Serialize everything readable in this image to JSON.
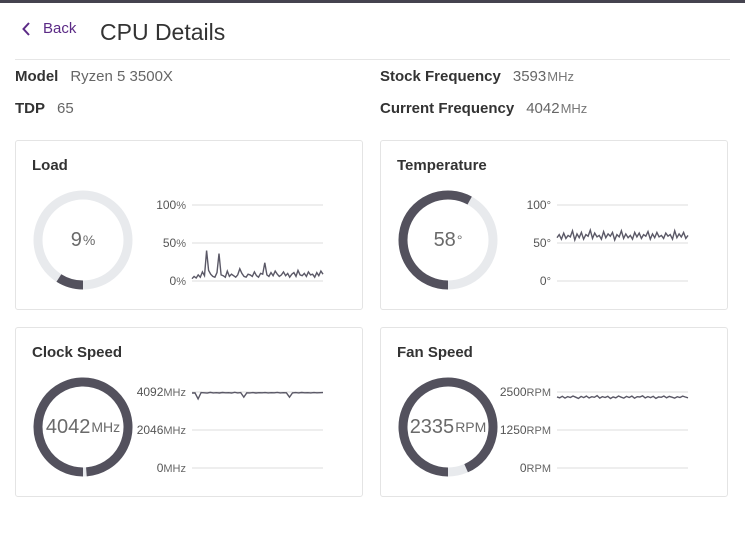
{
  "header": {
    "back_label": "Back",
    "title": "CPU Details"
  },
  "info": {
    "model_label": "Model",
    "model_value": "Ryzen 5 3500X",
    "tdp_label": "TDP",
    "tdp_value": "65",
    "stock_label": "Stock Frequency",
    "stock_value": "3593",
    "stock_unit": "MHz",
    "current_label": "Current Frequency",
    "current_value": "4042",
    "current_unit": "MHz"
  },
  "cards": {
    "load": {
      "title": "Load",
      "value": "9",
      "unit": "%",
      "fraction": 0.09,
      "ticks": [
        {
          "v": "100",
          "u": "%"
        },
        {
          "v": "50",
          "u": "%"
        },
        {
          "v": "0",
          "u": "%"
        }
      ]
    },
    "temperature": {
      "title": "Temperature",
      "value": "58",
      "unit": "°",
      "fraction": 0.58,
      "ticks": [
        {
          "v": "100",
          "u": "°"
        },
        {
          "v": "50",
          "u": "°"
        },
        {
          "v": "0",
          "u": "°"
        }
      ]
    },
    "clock": {
      "title": "Clock Speed",
      "value": "4042",
      "unit": "MHz",
      "fraction": 0.988,
      "ticks": [
        {
          "v": "4092",
          "u": "MHz"
        },
        {
          "v": "2046",
          "u": "MHz"
        },
        {
          "v": "0",
          "u": "MHz"
        }
      ]
    },
    "fan": {
      "title": "Fan Speed",
      "value": "2335",
      "unit": "RPM",
      "fraction": 0.934,
      "ticks": [
        {
          "v": "2500",
          "u": "RPM"
        },
        {
          "v": "1250",
          "u": "RPM"
        },
        {
          "v": "0",
          "u": "RPM"
        }
      ]
    }
  },
  "colors": {
    "accent": "#5b2a86",
    "gauge_fill": "#53515d",
    "gauge_track": "#e8eaed",
    "grid": "#dcdcdc",
    "line": "#5a5866"
  },
  "chart_data": [
    {
      "type": "line",
      "title": "Load",
      "ylim": [
        0,
        100
      ],
      "unit": "%",
      "values": [
        3,
        6,
        4,
        8,
        5,
        12,
        7,
        40,
        14,
        9,
        6,
        5,
        11,
        36,
        8,
        7,
        5,
        13,
        6,
        9,
        7,
        5,
        8,
        16,
        10,
        6,
        5,
        9,
        8,
        6,
        12,
        7,
        5,
        10,
        9,
        24,
        8,
        6,
        11,
        7,
        13,
        9,
        6,
        8,
        12,
        7,
        10,
        5,
        9,
        11,
        6,
        14,
        8,
        7,
        10,
        6,
        12,
        8,
        9,
        5,
        11,
        7,
        13,
        9
      ]
    },
    {
      "type": "line",
      "title": "Temperature",
      "ylim": [
        0,
        100
      ],
      "unit": "°",
      "values": [
        57,
        61,
        55,
        63,
        56,
        60,
        58,
        66,
        54,
        62,
        57,
        64,
        55,
        61,
        59,
        67,
        56,
        63,
        58,
        60,
        55,
        65,
        57,
        62,
        59,
        64,
        54,
        61,
        58,
        66,
        56,
        62,
        57,
        60,
        55,
        64,
        58,
        63,
        56,
        61,
        59,
        65,
        55,
        62,
        57,
        64,
        58,
        60,
        56,
        63,
        59,
        61,
        55,
        66,
        57,
        62,
        58,
        64,
        56,
        60
      ]
    },
    {
      "type": "line",
      "title": "Clock Speed",
      "ylim": [
        0,
        4092
      ],
      "unit": "MHz",
      "values": [
        4040,
        4045,
        3720,
        4060,
        4050,
        4035,
        4070,
        4042,
        4055,
        4038,
        4065,
        4048,
        4052,
        4040,
        4075,
        4045,
        4058,
        3820,
        4050,
        4044,
        4062,
        4040,
        4055,
        4049,
        4060,
        4041,
        4053,
        4047,
        4068,
        4043,
        4057,
        4050,
        3810,
        4046,
        4059,
        4042,
        4063,
        4048,
        4055,
        4044,
        4061,
        4047,
        4052,
        4058
      ]
    },
    {
      "type": "line",
      "title": "Fan Speed",
      "ylim": [
        0,
        2500
      ],
      "unit": "RPM",
      "values": [
        2340,
        2310,
        2360,
        2300,
        2350,
        2320,
        2370,
        2330,
        2290,
        2355,
        2315,
        2365,
        2305,
        2345,
        2325,
        2380,
        2300,
        2350,
        2320,
        2360,
        2285,
        2340,
        2310,
        2370,
        2330,
        2300,
        2355,
        2320,
        2365,
        2295,
        2345,
        2335,
        2375,
        2305,
        2350,
        2315,
        2360,
        2290,
        2340,
        2325,
        2370,
        2310,
        2355,
        2330,
        2300,
        2345,
        2320,
        2365,
        2335,
        2310
      ]
    }
  ]
}
